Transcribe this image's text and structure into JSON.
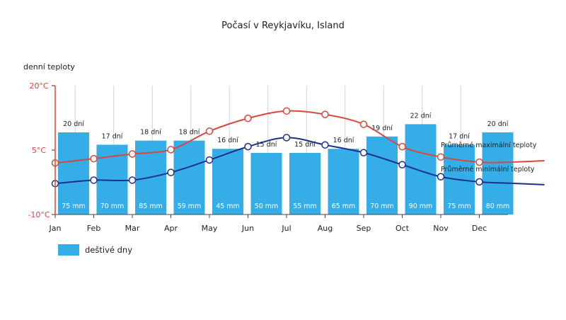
{
  "chart_data": {
    "type": "bar",
    "title": "Počasí v Reykjavíku, Island",
    "ylabel": "denní teploty",
    "categories": [
      "Jan",
      "Feb",
      "Mar",
      "Apr",
      "May",
      "Jun",
      "Jul",
      "Aug",
      "Sep",
      "Oct",
      "Nov",
      "Dec"
    ],
    "ylim": [
      -10,
      20
    ],
    "yticks": [
      "20°C",
      "5°C",
      "-10°C"
    ],
    "grid": true,
    "legend": {
      "position": "bottom-left",
      "label": "deštivé dny",
      "color": "#35aee8"
    },
    "rainy_days": {
      "name": "deštivé dny",
      "values": [
        20,
        17,
        18,
        18,
        16,
        15,
        15,
        16,
        19,
        22,
        17,
        20
      ],
      "labels": [
        "20 dní",
        "17 dní",
        "18 dní",
        "18 dní",
        "16 dní",
        "15 dní",
        "15 dní",
        "16 dní",
        "19 dní",
        "22 dní",
        "17 dní",
        "20 dní"
      ],
      "color": "#35aee8"
    },
    "precipitation": {
      "values": [
        75,
        70,
        85,
        59,
        45,
        50,
        55,
        65,
        70,
        90,
        75,
        80
      ],
      "labels": [
        "75 mm",
        "70 mm",
        "85 mm",
        "59 mm",
        "45 mm",
        "50 mm",
        "55 mm",
        "65 mm",
        "70 mm",
        "90 mm",
        "75 mm",
        "80 mm"
      ]
    },
    "series": [
      {
        "name": "Průměrné maximální teploty",
        "values": [
          2.0,
          3.0,
          4.1,
          5.1,
          9.4,
          12.4,
          14.1,
          13.3,
          11.0,
          5.8,
          3.4,
          2.2
        ],
        "color": "#d9473d"
      },
      {
        "name": "Průměrné minimální teploty",
        "values": [
          -2.8,
          -2.0,
          -2.0,
          -0.2,
          2.7,
          5.8,
          7.9,
          6.2,
          4.4,
          1.6,
          -1.2,
          -2.4
        ],
        "color": "#1e2f8c"
      }
    ]
  }
}
